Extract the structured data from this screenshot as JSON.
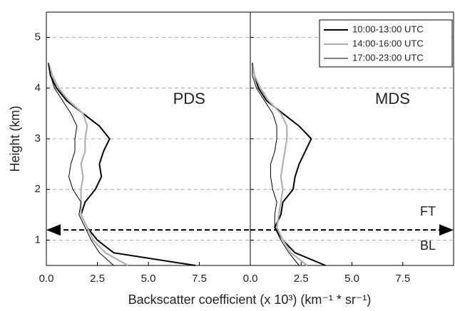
{
  "chart_data": [
    {
      "type": "line",
      "panel_label": "PDS",
      "ylabel": "Height (km)",
      "xlabel": "Backscatter coefficient (x 10³) (km⁻¹ * sr⁻¹)",
      "y": [
        0.5,
        0.75,
        1.0,
        1.25,
        1.5,
        1.75,
        2.0,
        2.25,
        2.5,
        2.75,
        3.0,
        3.25,
        3.5,
        3.75,
        4.0,
        4.25,
        4.5
      ],
      "series": [
        {
          "color": "#000000",
          "width": 2,
          "values": [
            7.3,
            3.3,
            2.5,
            2.0,
            1.7,
            1.9,
            2.4,
            2.7,
            2.6,
            2.8,
            3.1,
            2.6,
            1.8,
            1.0,
            0.5,
            0.2,
            0.1
          ]
        },
        {
          "color": "#b0b0b0",
          "width": 2.2,
          "values": [
            4.0,
            2.9,
            2.3,
            2.0,
            1.7,
            1.7,
            1.7,
            1.8,
            1.7,
            1.9,
            1.9,
            2.0,
            1.8,
            1.1,
            0.6,
            0.3,
            0.1
          ]
        },
        {
          "color": "#000000",
          "width": 1,
          "values": [
            3.3,
            2.6,
            2.2,
            1.9,
            1.6,
            1.7,
            1.3,
            1.1,
            1.2,
            1.4,
            1.4,
            1.5,
            1.2,
            0.8,
            0.4,
            0.2,
            0.1
          ]
        }
      ],
      "xlim": [
        0,
        10
      ],
      "xticks": [
        {
          "value": 0,
          "label": "0.0"
        },
        2.5,
        {
          "value": 5,
          "label": "5.0"
        },
        7.5
      ],
      "ylim": [
        0.5,
        5.5
      ],
      "yticks": [
        1,
        2,
        3,
        4,
        5
      ],
      "ytick_labels": true,
      "grid": true,
      "hline": 1.2
    },
    {
      "type": "line",
      "panel_label": "MDS",
      "y": [
        0.5,
        0.75,
        1.0,
        1.25,
        1.5,
        1.75,
        2.0,
        2.25,
        2.5,
        2.75,
        3.0,
        3.25,
        3.5,
        3.75,
        4.0,
        4.25,
        4.5
      ],
      "series": [
        {
          "name": "10:00-13:00 UTC",
          "color": "#000000",
          "width": 2,
          "values": [
            3.7,
            2.2,
            1.6,
            1.2,
            1.5,
            1.6,
            2.1,
            2.2,
            2.4,
            2.7,
            3.0,
            2.4,
            1.6,
            0.8,
            0.4,
            0.2,
            0.1
          ]
        },
        {
          "name": "14:00-16:00 UTC",
          "color": "#b0b0b0",
          "width": 2.2,
          "values": [
            2.8,
            2.0,
            1.6,
            1.3,
            1.4,
            1.5,
            1.6,
            1.5,
            1.6,
            1.7,
            1.8,
            1.8,
            1.5,
            0.9,
            0.5,
            0.2,
            0.1
          ]
        },
        {
          "name": "17:00-23:00 UTC",
          "color": "#000000",
          "width": 1,
          "values": [
            2.4,
            1.9,
            1.5,
            1.2,
            1.2,
            1.3,
            1.1,
            1.0,
            1.0,
            1.2,
            1.3,
            1.3,
            1.1,
            0.7,
            0.3,
            0.1,
            0.1
          ]
        }
      ],
      "xlim": [
        0,
        10
      ],
      "xticks": [
        {
          "value": 0,
          "label": "0.0"
        },
        2.5,
        {
          "value": 5,
          "label": "5.0"
        },
        7.5
      ],
      "ylim": [
        0.5,
        5.5
      ],
      "yticks": [
        1,
        2,
        3,
        4,
        5
      ],
      "ytick_labels": false,
      "grid": true,
      "hline": 1.2,
      "annotations": [
        "FT",
        "BL"
      ]
    }
  ]
}
